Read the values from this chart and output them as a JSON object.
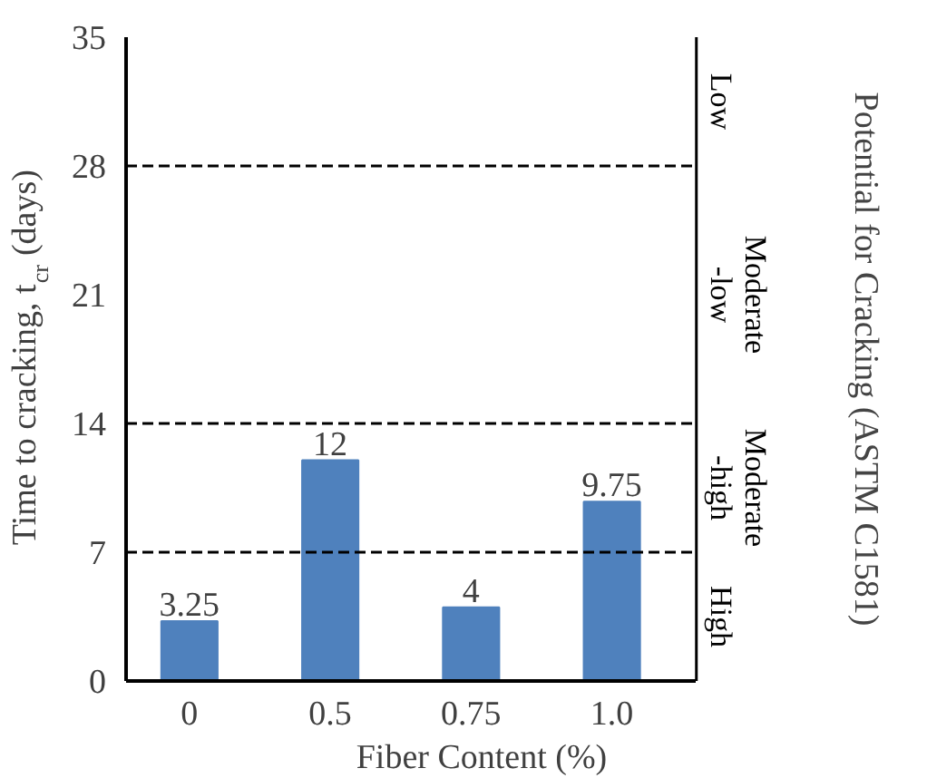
{
  "chart_data": {
    "type": "bar",
    "xlabel": "Fiber Content (%)",
    "ylabel": "Time to cracking, t$_{cr}$ (days)",
    "y2label": "Potential for Cracking (ASTM C1581)",
    "categories": [
      "0",
      "0.5",
      "0.75",
      "1.0"
    ],
    "values": [
      3.25,
      12,
      4,
      9.75
    ],
    "color": "#4f81bd",
    "data_labels": true,
    "ylim": [
      0,
      35
    ],
    "yticks": [
      0,
      7,
      14,
      21,
      28,
      35
    ],
    "ref_lines": [
      {
        "axis": "y",
        "value": 7,
        "line_style": "dashed"
      },
      {
        "axis": "y",
        "value": 14,
        "line_style": "dashed"
      },
      {
        "axis": "y",
        "value": 28,
        "line_style": "dashed"
      }
    ],
    "annotations": [
      "Low",
      "Moderate-low",
      "Moderate-high",
      "High"
    ]
  }
}
